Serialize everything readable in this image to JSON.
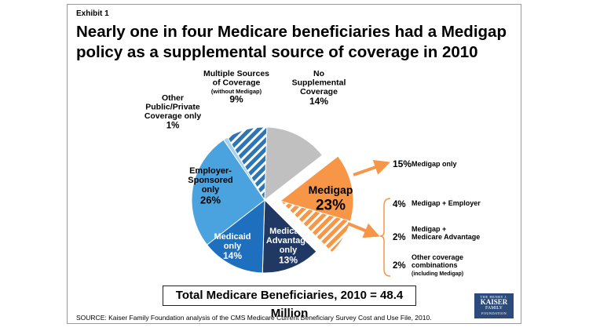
{
  "exhibit_label": "Exhibit 1",
  "title_line1": "Nearly one in four Medicare beneficiaries had a Medigap",
  "title_line2": "policy as a supplemental source of coverage in 2010",
  "total_text": "Total Medicare Beneficiaries, 2010 = 48.4 Million",
  "source_text": "SOURCE: Kaiser Family Foundation analysis of the CMS Medicare Current Beneficiary Survey Cost and Use File, 2010.",
  "logo": {
    "line1": "THE HENRY J.",
    "line2": "KAISER",
    "line3": "FAMILY",
    "line4": "FOUNDATION"
  },
  "colors": {
    "no_supplemental": "#c0c0c0",
    "medigap": "#f79646",
    "medicare_advantage": "#1f3864",
    "medicaid": "#1f6fbf",
    "employer": "#4aa3df",
    "other_public_private": "#a9d0ee",
    "multiple_sources": "#2e75b6",
    "arrow": "#f79646"
  },
  "chart_data": {
    "type": "pie",
    "total": "48.4 Million",
    "slices": [
      {
        "key": "no_supplemental",
        "label_lines": [
          "No",
          "Supplemental",
          "Coverage"
        ],
        "value": 14,
        "value_text": "14%"
      },
      {
        "key": "medigap",
        "label_lines": [
          "Medigap"
        ],
        "value": 23,
        "value_text": "23%",
        "exploded": true
      },
      {
        "key": "medicare_advantage",
        "label_lines": [
          "Medicare",
          "Advantage",
          "only"
        ],
        "value": 13,
        "value_text": "13%"
      },
      {
        "key": "medicaid",
        "label_lines": [
          "Medicaid",
          "only"
        ],
        "value": 14,
        "value_text": "14%"
      },
      {
        "key": "employer",
        "label_lines": [
          "Employer-",
          "Sponsored",
          "only"
        ],
        "value": 26,
        "value_text": "26%"
      },
      {
        "key": "other_public_private",
        "label_lines": [
          "Other",
          "Public/Private",
          "Coverage only"
        ],
        "value": 1,
        "value_text": "1%"
      },
      {
        "key": "multiple_sources",
        "label_lines": [
          "Multiple Sources",
          "of Coverage"
        ],
        "sublabel": "(without Medigap)",
        "value": 9,
        "value_text": "9%",
        "pattern": "stripes"
      }
    ],
    "medigap_breakdown": [
      {
        "label_lines": [
          "Medigap only"
        ],
        "value": 15,
        "value_text": "15%"
      },
      {
        "label_lines": [
          "Medigap + Employer"
        ],
        "value": 4,
        "value_text": "4%"
      },
      {
        "label_lines": [
          "Medigap +",
          "Medicare Advantage"
        ],
        "value": 2,
        "value_text": "2%"
      },
      {
        "label_lines": [
          "Other coverage",
          "combinations"
        ],
        "sublabel": "(including Medigap)",
        "value": 2,
        "value_text": "2%"
      }
    ]
  }
}
